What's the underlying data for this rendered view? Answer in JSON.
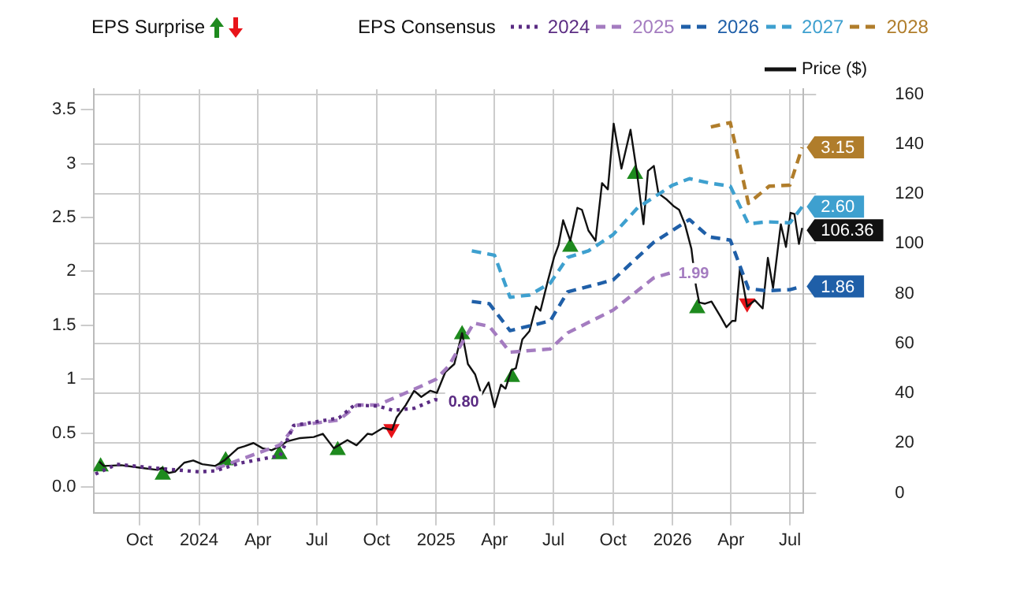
{
  "chart_data": {
    "type": "line",
    "annotations": [
      "EPS Surprise"
    ],
    "legend_title": "EPS Consensus",
    "legend": "top",
    "grid": true,
    "xlim": [
      "2023-07-22",
      "2026-07-22"
    ],
    "xticks": [
      {
        "value": "2023-10-01",
        "label": "Oct"
      },
      {
        "value": "2024-01-01",
        "label": "2024"
      },
      {
        "value": "2024-04-01",
        "label": "Apr"
      },
      {
        "value": "2024-07-01",
        "label": "Jul"
      },
      {
        "value": "2024-10-01",
        "label": "Oct"
      },
      {
        "value": "2025-01-01",
        "label": "2025"
      },
      {
        "value": "2025-04-01",
        "label": "Apr"
      },
      {
        "value": "2025-07-01",
        "label": "Jul"
      },
      {
        "value": "2025-10-01",
        "label": "Oct"
      },
      {
        "value": "2026-01-01",
        "label": "2026"
      },
      {
        "value": "2026-04-01",
        "label": "Apr"
      },
      {
        "value": "2026-07-01",
        "label": "Jul"
      }
    ],
    "ylim": [
      -0.24,
      3.69
    ],
    "yticks": [
      {
        "value": 0,
        "label": "0.0"
      },
      0.5,
      1,
      1.5,
      2,
      2.5,
      3,
      3.5
    ],
    "y2lim": [
      -8,
      162
    ],
    "y2ticks": [
      0,
      20,
      40,
      60,
      80,
      100,
      120,
      140,
      160
    ],
    "series": [
      {
        "name": "2024",
        "type": "line",
        "line_style": "dotted",
        "color": "#5b2c83",
        "x": [
          "2023-07-25",
          "2023-08-27",
          "2023-10-15",
          "2024-01-01",
          "2024-01-27",
          "2024-03-03",
          "2024-05-05",
          "2024-05-26",
          "2024-08-04",
          "2024-08-28",
          "2024-10-03",
          "2024-10-27",
          "2024-11-28",
          "2024-12-30",
          "2025-01-10"
        ],
        "values": [
          0.12,
          0.21,
          0.18,
          0.14,
          0.15,
          0.22,
          0.29,
          0.57,
          0.64,
          0.76,
          0.75,
          0.71,
          0.73,
          0.81,
          0.8
        ],
        "value_labels": [
          null,
          null,
          null,
          null,
          null,
          null,
          null,
          null,
          null,
          null,
          null,
          null,
          null,
          null,
          "0.80"
        ]
      },
      {
        "name": "2025",
        "type": "line",
        "line_style": "dashed",
        "color": "#a47cc0",
        "x": [
          "2024-01-27",
          "2024-05-05",
          "2024-05-29",
          "2024-08-04",
          "2024-09-01",
          "2024-10-03",
          "2024-12-07",
          "2025-01-01",
          "2025-01-20",
          "2025-02-28",
          "2025-03-24",
          "2025-04-25",
          "2025-06-26",
          "2025-07-23",
          "2025-10-01",
          "2025-12-03",
          "2025-12-31"
        ],
        "values": [
          0.17,
          0.39,
          0.57,
          0.62,
          0.76,
          0.76,
          0.93,
          1.0,
          1.12,
          1.52,
          1.49,
          1.25,
          1.28,
          1.43,
          1.64,
          1.94,
          1.99
        ],
        "value_labels": [
          null,
          null,
          null,
          null,
          null,
          null,
          null,
          null,
          null,
          null,
          null,
          null,
          null,
          null,
          null,
          null,
          "1.99"
        ]
      },
      {
        "name": "2026",
        "type": "line",
        "line_style": "dashed",
        "color": "#1f5fa8",
        "x": [
          "2025-02-25",
          "2025-03-24",
          "2025-04-25",
          "2025-06-26",
          "2025-07-23",
          "2025-10-01",
          "2025-12-03",
          "2026-01-27",
          "2026-02-26",
          "2026-03-31",
          "2026-04-28",
          "2026-05-26",
          "2026-07-01",
          "2026-07-20"
        ],
        "values": [
          1.72,
          1.7,
          1.45,
          1.54,
          1.81,
          1.92,
          2.27,
          2.48,
          2.32,
          2.29,
          1.84,
          1.82,
          1.83,
          1.86
        ],
        "value_labels": [
          null,
          null,
          null,
          null,
          null,
          null,
          null,
          null,
          null,
          null,
          null,
          null,
          null,
          "1.86"
        ]
      },
      {
        "name": "2027",
        "type": "line",
        "line_style": "dashed",
        "color": "#3ea0cf",
        "x": [
          "2025-02-25",
          "2025-04-01",
          "2025-04-25",
          "2025-05-25",
          "2025-06-26",
          "2025-07-23",
          "2025-08-24",
          "2025-10-01",
          "2025-11-08",
          "2026-01-01",
          "2026-01-27",
          "2026-02-26",
          "2026-03-31",
          "2026-04-28",
          "2026-05-26",
          "2026-07-01",
          "2026-07-20"
        ],
        "values": [
          2.19,
          2.15,
          1.76,
          1.78,
          1.89,
          2.13,
          2.19,
          2.34,
          2.59,
          2.8,
          2.86,
          2.82,
          2.79,
          2.44,
          2.46,
          2.45,
          2.6
        ],
        "value_labels": [
          null,
          null,
          null,
          null,
          null,
          null,
          null,
          null,
          null,
          null,
          null,
          null,
          null,
          null,
          null,
          null,
          "2.60"
        ]
      },
      {
        "name": "2028",
        "type": "line",
        "line_style": "dashed",
        "color": "#b07d2b",
        "x": [
          "2026-03-01",
          "2026-03-31",
          "2026-04-28",
          "2026-05-30",
          "2026-07-01",
          "2026-07-20"
        ],
        "values": [
          3.34,
          3.38,
          2.63,
          2.79,
          2.8,
          3.15
        ],
        "value_labels": [
          null,
          null,
          null,
          null,
          null,
          "3.15"
        ]
      },
      {
        "name": "Price ($)",
        "type": "line",
        "axis": "y2",
        "line_style": "solid",
        "color": "#111111",
        "x": [
          "2023-07-31",
          "2023-08-07",
          "2023-09-03",
          "2023-10-01",
          "2023-10-29",
          "2023-11-05",
          "2023-11-15",
          "2023-11-25",
          "2023-12-09",
          "2023-12-23",
          "2024-01-06",
          "2024-01-26",
          "2024-02-09",
          "2024-03-01",
          "2024-03-11",
          "2024-03-25",
          "2024-04-08",
          "2024-04-22",
          "2024-05-05",
          "2024-05-16",
          "2024-06-05",
          "2024-06-26",
          "2024-07-10",
          "2024-07-27",
          "2024-08-17",
          "2024-08-31",
          "2024-09-17",
          "2024-09-24",
          "2024-10-11",
          "2024-10-25",
          "2024-11-01",
          "2024-11-15",
          "2024-11-28",
          "2024-12-09",
          "2024-12-23",
          "2025-01-02",
          "2025-01-15",
          "2025-01-29",
          "2025-02-10",
          "2025-02-19",
          "2025-03-02",
          "2025-03-12",
          "2025-03-23",
          "2025-04-01",
          "2025-04-11",
          "2025-04-18",
          "2025-04-27",
          "2025-05-04",
          "2025-05-14",
          "2025-05-25",
          "2025-06-04",
          "2025-06-11",
          "2025-06-22",
          "2025-07-02",
          "2025-07-09",
          "2025-07-16",
          "2025-07-27",
          "2025-08-07",
          "2025-08-14",
          "2025-08-24",
          "2025-09-04",
          "2025-09-14",
          "2025-09-23",
          "2025-10-02",
          "2025-10-14",
          "2025-10-28",
          "2025-11-07",
          "2025-11-17",
          "2025-11-24",
          "2025-12-03",
          "2025-12-10",
          "2025-12-23",
          "2026-01-02",
          "2026-01-11",
          "2026-01-20",
          "2026-01-30",
          "2026-02-06",
          "2026-02-11",
          "2026-02-20",
          "2026-03-02",
          "2026-03-16",
          "2026-03-25",
          "2026-04-03",
          "2026-04-08",
          "2026-04-15",
          "2026-04-26",
          "2026-05-08",
          "2026-05-20",
          "2026-05-28",
          "2026-06-05",
          "2026-06-17",
          "2026-06-25",
          "2026-07-02",
          "2026-07-08",
          "2026-07-15",
          "2026-07-20"
        ],
        "values": [
          12.5,
          10.8,
          11.1,
          10.1,
          9.2,
          10.1,
          8.0,
          8.5,
          12.1,
          13.0,
          11.5,
          10.8,
          13.0,
          17.9,
          18.7,
          20.0,
          17.9,
          17.1,
          18.7,
          20.7,
          22.0,
          22.4,
          23.7,
          17.9,
          21.2,
          19.1,
          23.7,
          23.4,
          26.1,
          25.3,
          30.3,
          35.2,
          41.0,
          38.5,
          41.0,
          40.1,
          48.4,
          51.7,
          64.1,
          51.7,
          47.6,
          39.3,
          44.3,
          34.4,
          43.4,
          41.8,
          49.2,
          50.0,
          61.6,
          64.9,
          74.8,
          73.1,
          84.7,
          94.6,
          99.5,
          109.4,
          101.2,
          114.4,
          113.6,
          105.3,
          101.2,
          124.3,
          121.8,
          148.2,
          130.1,
          145.7,
          128.4,
          107.8,
          129.2,
          131.2,
          120.2,
          117.7,
          115.2,
          113.6,
          107.8,
          97.9,
          83.0,
          76.4,
          75.9,
          76.8,
          70.7,
          66.5,
          69.0,
          69.0,
          90.5,
          74.8,
          77.3,
          74.0,
          94.3,
          82.2,
          107.8,
          98.7,
          112.4,
          111.9,
          99.9,
          106.36
        ],
        "value_labels": [
          null,
          null,
          null,
          null,
          null,
          null,
          null,
          null,
          null,
          null,
          null,
          null,
          null,
          null,
          null,
          null,
          null,
          null,
          null,
          null,
          null,
          null,
          null,
          null,
          null,
          null,
          null,
          null,
          null,
          null,
          null,
          null,
          null,
          null,
          null,
          null,
          null,
          null,
          null,
          null,
          null,
          null,
          null,
          null,
          null,
          null,
          null,
          null,
          null,
          null,
          null,
          null,
          null,
          null,
          null,
          null,
          null,
          null,
          null,
          null,
          null,
          null,
          null,
          null,
          null,
          null,
          null,
          null,
          null,
          null,
          null,
          null,
          null,
          null,
          null,
          null,
          null,
          null,
          null,
          null,
          null,
          null,
          null,
          null,
          null,
          null,
          null,
          null,
          null,
          null,
          null,
          null,
          null,
          null,
          null,
          "106.36"
        ]
      },
      {
        "type": "scatter",
        "axis": "y2",
        "marker": "triangle",
        "color": "#1e8a1e",
        "x": [
          "2023-08-02",
          "2023-11-06",
          "2024-02-11",
          "2024-05-04",
          "2024-08-02",
          "2025-02-10",
          "2025-04-28",
          "2025-07-27",
          "2025-11-04",
          "2026-02-08"
        ],
        "values": [
          10.5,
          7.2,
          13.0,
          15.4,
          17.1,
          63.6,
          46.4,
          98.7,
          127.9,
          74.0
        ]
      },
      {
        "type": "scatter",
        "axis": "y2",
        "marker": "triangle",
        "color": "#e8141a",
        "x": [
          "2024-10-24",
          "2026-04-26"
        ],
        "values": [
          25.7,
          76.1
        ]
      }
    ]
  }
}
